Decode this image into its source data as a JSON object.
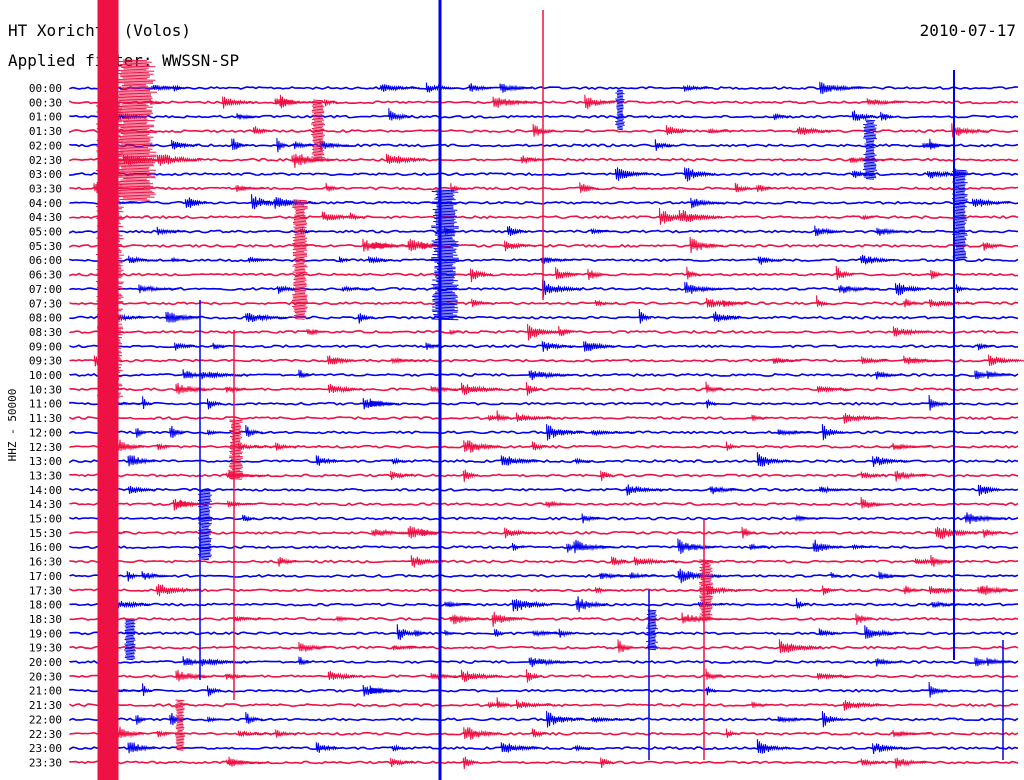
{
  "header": {
    "station_text": "HT Xorichti (Volos)",
    "filter_text": "Applied filter: WWSSN-SP",
    "date": "2010-07-17",
    "side_label": "HHZ - 50000"
  },
  "colors": {
    "blue": "#0000ee",
    "red": "#ee1144"
  },
  "chart_data": {
    "type": "line",
    "title": "HT Xorichti (Volos)",
    "subtitle": "Applied filter: WWSSN-SP",
    "date": "2010-07-17",
    "ylabel": "HHZ - 50000",
    "y_tick_labels": [
      "00:00",
      "00:30",
      "01:00",
      "01:30",
      "02:00",
      "02:30",
      "03:00",
      "03:30",
      "04:00",
      "04:30",
      "05:00",
      "05:30",
      "06:00",
      "06:30",
      "07:00",
      "07:30",
      "08:00",
      "08:30",
      "09:00",
      "09:30",
      "10:00",
      "10:30",
      "11:00",
      "11:30",
      "12:00",
      "12:30",
      "13:00",
      "13:30",
      "14:00",
      "14:30",
      "15:00",
      "15:30",
      "16:00",
      "16:30",
      "17:00",
      "17:30",
      "18:00",
      "18:30",
      "19:00",
      "19:30",
      "20:00",
      "20:30",
      "21:00",
      "21:30",
      "22:00",
      "22:30",
      "23:00",
      "23:30"
    ],
    "trace_colors": [
      "blue",
      "red"
    ],
    "grid": false,
    "legend": "none"
  }
}
